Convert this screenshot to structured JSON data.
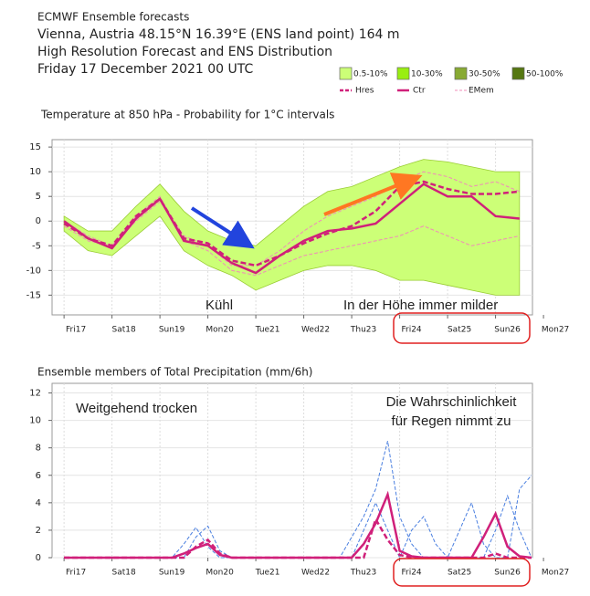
{
  "header": {
    "lines": [
      "ECMWF Ensemble forecasts",
      "Vienna, Austria 48.15°N 16.39°E (ENS land point) 164 m",
      "High Resolution Forecast and ENS Distribution",
      "Friday 17 December 2021 00 UTC"
    ]
  },
  "chart_data": [
    {
      "type": "line",
      "title": "Temperature at 850 hPa - Probability for 1°C intervals",
      "xlim": [
        -0.25,
        9.77
      ],
      "xticks": [
        {
          "value": 0,
          "label": "Fri17",
          "color": "#333333"
        },
        {
          "value": 1,
          "label": "Sat18",
          "color": "#333333"
        },
        {
          "value": 2,
          "label": "Sun19",
          "color": "#dd1111"
        },
        {
          "value": 3,
          "label": "Mon20",
          "color": "#333333"
        },
        {
          "value": 4,
          "label": "Tue21",
          "color": "#333333"
        },
        {
          "value": 5,
          "label": "Wed22",
          "color": "#333333"
        },
        {
          "value": 6,
          "label": "Thu23",
          "color": "#333333"
        },
        {
          "value": 7,
          "label": "Fri24",
          "color": "#333333"
        },
        {
          "value": 8,
          "label": "Sat25",
          "color": "#333333"
        },
        {
          "value": 9,
          "label": "Sun26",
          "color": "#dd1111"
        },
        {
          "value": 10,
          "label": "Mon27",
          "color": "#333333"
        }
      ],
      "ylim": [
        -19,
        16.5
      ],
      "yticks": [
        -15,
        -10,
        -5,
        0,
        5,
        10,
        15
      ],
      "grid": true,
      "probability_classes": [
        {
          "name": "0.5-10%",
          "color": "#ccff77"
        },
        {
          "name": "10-30%",
          "color": "#99ee11"
        },
        {
          "name": "30-50%",
          "color": "#88aa33"
        },
        {
          "name": "50-100%",
          "color": "#557711"
        }
      ],
      "x": [
        0,
        0.5,
        1,
        1.5,
        2,
        2.5,
        3,
        3.5,
        4,
        4.5,
        5,
        5.5,
        6,
        6.5,
        7,
        7.5,
        8,
        8.5,
        9,
        9.5
      ],
      "band": {
        "class": 0,
        "upper": [
          1,
          -2,
          -2,
          3,
          7.5,
          2,
          -2,
          -4,
          -5,
          -1,
          3,
          6,
          7,
          9,
          11,
          12.5,
          12,
          11,
          10,
          10
        ],
        "lower": [
          -2,
          -6,
          -7,
          -3,
          1,
          -6,
          -9,
          -11,
          -14,
          -12,
          -10,
          -9,
          -9,
          -10,
          -12,
          -12,
          -13,
          -14,
          -15,
          -15
        ]
      },
      "member_name": "EMem",
      "member_color": "#f08cb8",
      "members": [
        [
          -1,
          -4,
          -5,
          0,
          4,
          -3,
          -5,
          -9,
          -9,
          -6,
          -2,
          1,
          3,
          5,
          8,
          10,
          9,
          7,
          8,
          6
        ],
        [
          0,
          -3,
          -5,
          1,
          5,
          -4,
          -6,
          -10,
          -11,
          -9,
          -7,
          -6,
          -5,
          -4,
          -3,
          -1,
          -3,
          -5,
          -4,
          -3
        ]
      ],
      "series": [
        {
          "name": "Hres",
          "color": "#d0207a",
          "dash": true,
          "values": [
            -0.5,
            -3.5,
            -5,
            1,
            4.5,
            -3.5,
            -4.5,
            -8,
            -9,
            -7,
            -4.5,
            -2.5,
            -1,
            2,
            7,
            8,
            6.5,
            5.5,
            5.5,
            6
          ]
        },
        {
          "name": "Ctr",
          "color": "#d0207a",
          "dash": false,
          "values": [
            0,
            -3.5,
            -5.5,
            0.5,
            4.5,
            -4,
            -5,
            -8.5,
            -10.5,
            -7,
            -4,
            -2,
            -1.5,
            -0.5,
            3.5,
            7.5,
            5,
            5,
            1,
            0.5
          ]
        }
      ],
      "annotations": [
        {
          "text": "Kühl",
          "color": "#2244dd"
        },
        {
          "text": "In der Höhe immer milder",
          "color": "#ff7722"
        }
      ]
    },
    {
      "type": "line",
      "title": "Ensemble members of Total Precipitation (mm/6h)",
      "xlim": [
        -0.25,
        9.77
      ],
      "xticks": [
        {
          "value": 0,
          "label": "Fri17",
          "color": "#333333"
        },
        {
          "value": 1,
          "label": "Sat18",
          "color": "#333333"
        },
        {
          "value": 2,
          "label": "Sun19",
          "color": "#dd1111"
        },
        {
          "value": 3,
          "label": "Mon20",
          "color": "#333333"
        },
        {
          "value": 4,
          "label": "Tue21",
          "color": "#333333"
        },
        {
          "value": 5,
          "label": "Wed22",
          "color": "#333333"
        },
        {
          "value": 6,
          "label": "Thu23",
          "color": "#333333"
        },
        {
          "value": 7,
          "label": "Fri24",
          "color": "#333333"
        },
        {
          "value": 8,
          "label": "Sat25",
          "color": "#333333"
        },
        {
          "value": 9,
          "label": "Sun26",
          "color": "#dd1111"
        },
        {
          "value": 10,
          "label": "Mon27",
          "color": "#333333"
        }
      ],
      "ylim": [
        0,
        12.7
      ],
      "yticks": [
        0,
        2,
        4,
        6,
        8,
        10,
        12
      ],
      "grid": true,
      "x": [
        0,
        0.25,
        0.5,
        0.75,
        1,
        1.25,
        1.5,
        1.75,
        2,
        2.25,
        2.5,
        2.75,
        3,
        3.25,
        3.5,
        3.75,
        4,
        4.25,
        4.5,
        4.75,
        5,
        5.25,
        5.5,
        5.75,
        6,
        6.25,
        6.5,
        6.75,
        7,
        7.25,
        7.5,
        7.75,
        8,
        8.25,
        8.5,
        8.75,
        9,
        9.25,
        9.5,
        9.75
      ],
      "member_color": "#4a7fe0",
      "members": [
        [
          0,
          0,
          0,
          0,
          0,
          0,
          0,
          0,
          0,
          0,
          0,
          1.5,
          2.3,
          0.5,
          0,
          0,
          0,
          0,
          0,
          0,
          0,
          0,
          0,
          0,
          1.5,
          3,
          5,
          8.5,
          3,
          1,
          0,
          0,
          0,
          2,
          4,
          1,
          0,
          0,
          5,
          6
        ],
        [
          0,
          0,
          0,
          0,
          0,
          0,
          0,
          0,
          0,
          0,
          1,
          2.2,
          0.8,
          0,
          0,
          0,
          0,
          0,
          0,
          0,
          0,
          0,
          0,
          0,
          0,
          2,
          4,
          2,
          0,
          2,
          3,
          1,
          0,
          0,
          0,
          0,
          2,
          4.5,
          2,
          0
        ]
      ],
      "series": [
        {
          "color": "#d0207a",
          "dash": true,
          "values": [
            0,
            0,
            0,
            0,
            0,
            0,
            0,
            0,
            0,
            0,
            0,
            0.8,
            1.3,
            0.3,
            0,
            0,
            0,
            0,
            0,
            0,
            0,
            0,
            0,
            0,
            0,
            0,
            2.8,
            1.3,
            0.2,
            0,
            0,
            0,
            0,
            0,
            0,
            0,
            0.3,
            0,
            0,
            0
          ]
        },
        {
          "color": "#d0207a",
          "dash": false,
          "values": [
            0,
            0,
            0,
            0,
            0,
            0,
            0,
            0,
            0,
            0,
            0.3,
            0.7,
            1,
            0.2,
            0,
            0,
            0,
            0,
            0,
            0,
            0,
            0,
            0,
            0,
            0,
            1,
            2.5,
            4.6,
            0.5,
            0.1,
            0,
            0,
            0,
            0,
            0,
            1.5,
            3.2,
            0.8,
            0.1,
            0
          ]
        }
      ],
      "annotations": [
        {
          "text": "Weitgehend trocken",
          "color": "#111111"
        },
        {
          "text": "Die Wahrschinlichkeit",
          "color": "#111111"
        },
        {
          "text": "für Regen nimmt zu",
          "color": "#111111"
        }
      ]
    }
  ]
}
